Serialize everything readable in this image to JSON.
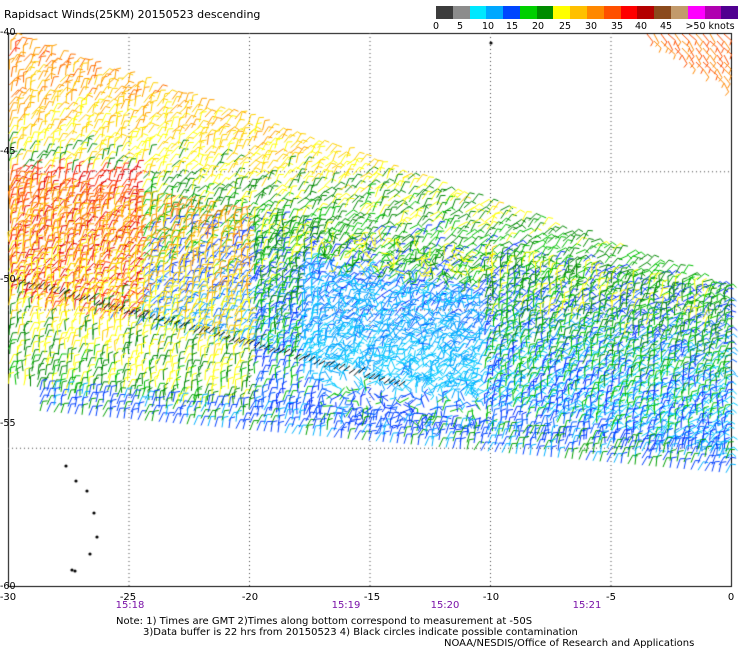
{
  "header": {
    "title": "Rapidsact Winds(25KM) 20150523 descending"
  },
  "color_scale": {
    "labels": [
      "0",
      "5",
      "10",
      "15",
      "20",
      "25",
      "30",
      "35",
      "40",
      "45",
      ">50 knots"
    ],
    "colors": [
      "#3c3c3c",
      "#8c8c8c",
      "#00e8ff",
      "#00a8ff",
      "#0046ff",
      "#00d000",
      "#008c00",
      "#ffff00",
      "#ffc000",
      "#ff8800",
      "#ff5000",
      "#ff0000",
      "#b40000",
      "#8b4a1c",
      "#c29a6b",
      "#ff00ff",
      "#b000b0",
      "#500090"
    ]
  },
  "map": {
    "lat_ticks": [
      "-40",
      "-45",
      "-50",
      "-55",
      "-60"
    ],
    "lon_ticks": [
      "-30",
      "-25",
      "-20",
      "-15",
      "-10",
      "-5",
      "0"
    ],
    "times": [
      "15:18",
      "15:19",
      "15:20",
      "15:21"
    ],
    "lat_range": [
      -60,
      -40
    ],
    "lon_range": [
      -30,
      0
    ],
    "grid": "dotted"
  },
  "footer": {
    "note_line1": "Note: 1) Times are GMT 2)Times along bottom correspond to measurement at -50S",
    "note_line2": "3)Data buffer is 22 hrs from 20150523 4) Black circles indicate possible contamination",
    "credit": "NOAA/NESDIS/Office of Research and Applications"
  }
}
